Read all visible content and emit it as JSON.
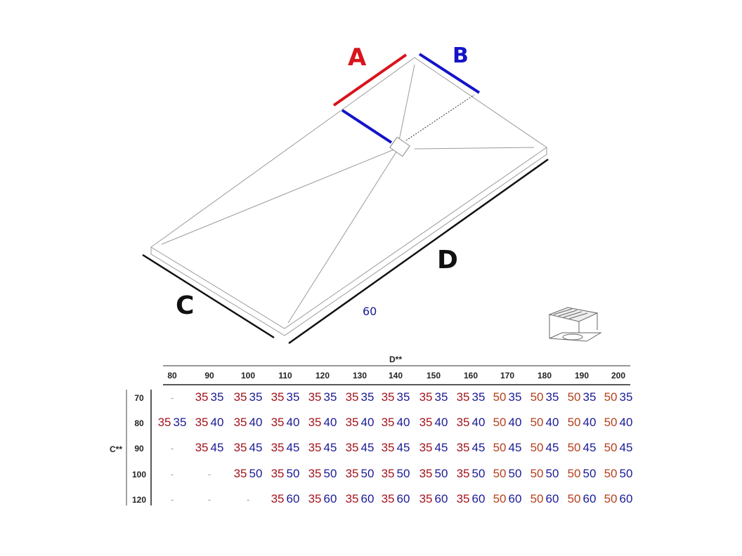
{
  "diagram": {
    "labels": {
      "A": "A",
      "B": "B",
      "C": "C",
      "D": "D",
      "extra": "60"
    },
    "colors": {
      "A": "#d8141c",
      "B": "#1414c8",
      "outline": "#999999",
      "edge": "#111111",
      "value_a_35": "#a3141e",
      "value_a_50": "#b5401e",
      "value_b": "#1a1a96",
      "empty": "#999999"
    },
    "icons": [
      "shower-tray-drawing",
      "drain-icon"
    ]
  },
  "table": {
    "col_title": "D**",
    "row_title": "C**",
    "columns": [
      "80",
      "90",
      "100",
      "110",
      "120",
      "130",
      "140",
      "150",
      "160",
      "170",
      "180",
      "190",
      "200"
    ],
    "rows": [
      {
        "label": "70",
        "cells": [
          "-",
          "35 35",
          "35 35",
          "35 35",
          "35 35",
          "35 35",
          "35 35",
          "35 35",
          "35 35",
          "50 35",
          "50 35",
          "50 35",
          "50 35"
        ]
      },
      {
        "label": "80",
        "cells": [
          "35 35",
          "35 40",
          "35 40",
          "35 40",
          "35 40",
          "35 40",
          "35 40",
          "35 40",
          "35 40",
          "50 40",
          "50 40",
          "50 40",
          "50 40"
        ]
      },
      {
        "label": "90",
        "cells": [
          "-",
          "35 45",
          "35 45",
          "35 45",
          "35 45",
          "35 45",
          "35 45",
          "35 45",
          "35 45",
          "50 45",
          "50 45",
          "50 45",
          "50 45"
        ]
      },
      {
        "label": "100",
        "cells": [
          "-",
          "-",
          "35 50",
          "35 50",
          "35 50",
          "35 50",
          "35 50",
          "35 50",
          "35 50",
          "50 50",
          "50 50",
          "50 50",
          "50 50"
        ]
      },
      {
        "label": "120",
        "cells": [
          "-",
          "-",
          "-",
          "35 60",
          "35 60",
          "35 60",
          "35 60",
          "35 60",
          "35 60",
          "50 60",
          "50 60",
          "50 60",
          "50 60"
        ]
      }
    ]
  }
}
